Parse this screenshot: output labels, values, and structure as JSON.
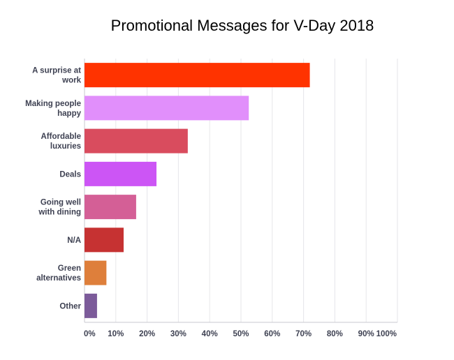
{
  "chart_data": {
    "type": "bar",
    "orientation": "horizontal",
    "title": "Promotional Messages for V-Day 2018",
    "xlabel": "",
    "ylabel": "",
    "xlim": [
      0,
      100
    ],
    "grid": true,
    "x_ticks": [
      "0%",
      "10%",
      "20%",
      "30%",
      "40%",
      "50%",
      "60%",
      "70%",
      "80%",
      "90%",
      "100%"
    ],
    "categories": [
      [
        "A surprise at",
        "work"
      ],
      [
        "Making people",
        "happy"
      ],
      [
        "Affordable",
        "luxuries"
      ],
      [
        "Deals"
      ],
      [
        "Going well",
        "with dining"
      ],
      [
        "N/A"
      ],
      [
        "Green",
        "alternatives"
      ],
      [
        "Other"
      ]
    ],
    "values": [
      72,
      52.5,
      33,
      23,
      16.5,
      12.5,
      7,
      4
    ],
    "colors": [
      "#ff3300",
      "#e18ffb",
      "#d94c5e",
      "#cc55f5",
      "#d45f96",
      "#c63232",
      "#de7f3b",
      "#7c5b9a"
    ]
  }
}
